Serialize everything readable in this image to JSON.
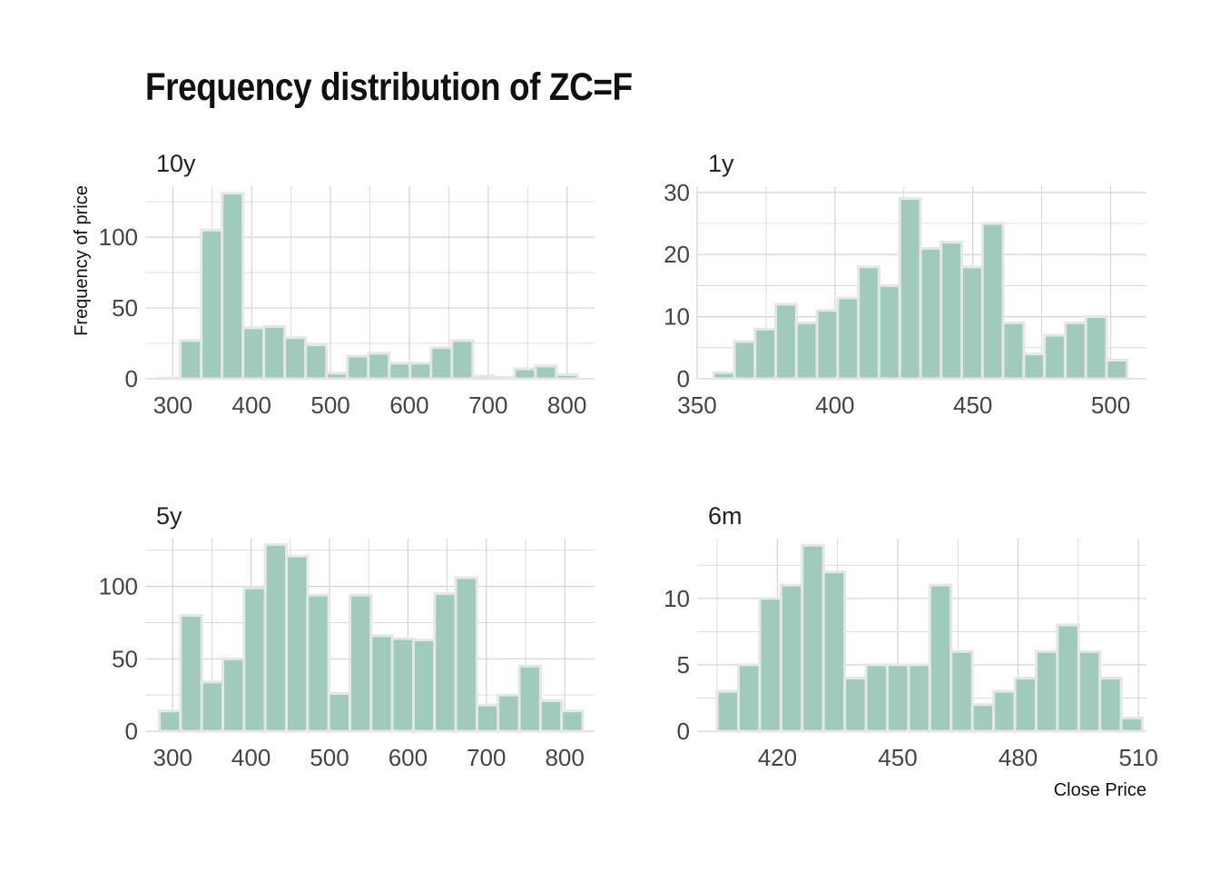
{
  "title": "Frequency distribution of ZC=F",
  "ylabel": "Frequency of price",
  "xlabel": "Close Price",
  "colors": {
    "bar_fill": "#9fcabc",
    "bar_stroke": "#e6e6e6",
    "grid": "#d4d4d4",
    "text": "#444444"
  },
  "chart_data": [
    {
      "type": "bar",
      "title": "10y",
      "bin_width": 26.5,
      "x_start": 283,
      "xlim": [
        265,
        835
      ],
      "ylim": [
        0,
        136
      ],
      "xticks": [
        300,
        400,
        500,
        600,
        700,
        800
      ],
      "yticks": [
        0,
        50,
        100
      ],
      "values": [
        0.5,
        27,
        105,
        131,
        36,
        37,
        29,
        24,
        4,
        16,
        18,
        11,
        11,
        22,
        27,
        2,
        1,
        7,
        9,
        3
      ]
    },
    {
      "type": "bar",
      "title": "1y",
      "bin_width": 7.5,
      "x_start": 356,
      "xlim": [
        350,
        513
      ],
      "ylim": [
        0,
        31
      ],
      "xticks": [
        350,
        400,
        450,
        500
      ],
      "yticks": [
        0,
        10,
        20,
        30
      ],
      "values": [
        1,
        6,
        8,
        12,
        9,
        11,
        13,
        18,
        15,
        29,
        21,
        22,
        18,
        25,
        9,
        4,
        7,
        9,
        10,
        3
      ]
    },
    {
      "type": "bar",
      "title": "5y",
      "bin_width": 27,
      "x_start": 283,
      "xlim": [
        265,
        838
      ],
      "ylim": [
        0,
        133
      ],
      "xticks": [
        300,
        400,
        500,
        600,
        700,
        800
      ],
      "yticks": [
        0,
        50,
        100
      ],
      "values": [
        14,
        80,
        34,
        50,
        99,
        129,
        121,
        94,
        26,
        94,
        66,
        64,
        63,
        95,
        106,
        18,
        25,
        45,
        21,
        14
      ]
    },
    {
      "type": "bar",
      "title": "6m",
      "bin_width": 5.3,
      "x_start": 405,
      "xlim": [
        400,
        512
      ],
      "ylim": [
        0,
        14.5
      ],
      "xticks": [
        420,
        450,
        480,
        510
      ],
      "yticks": [
        0,
        5,
        10
      ],
      "values": [
        3,
        5,
        10,
        11,
        14,
        12,
        4,
        5,
        5,
        5,
        11,
        6,
        2,
        3,
        4,
        6,
        8,
        6,
        4,
        1
      ]
    }
  ]
}
